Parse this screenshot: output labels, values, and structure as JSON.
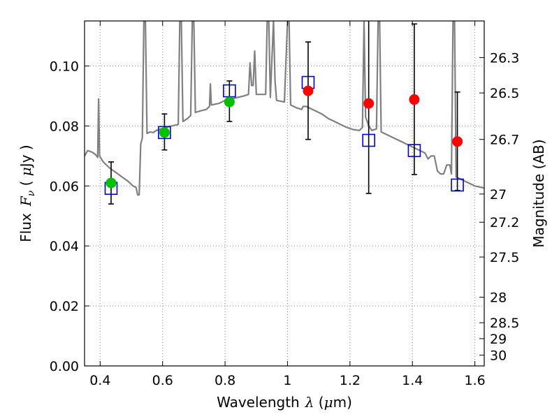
{
  "chart_data": {
    "type": "scatter",
    "xlabel": {
      "prefix": "Wavelength",
      "symbol": "λ",
      "open": " (",
      "unit_mu": "μ",
      "unit_rest": "m)"
    },
    "ylabel": {
      "prefix": "Flux",
      "symbol": "F",
      "subscript": "ν",
      "open": " ( ",
      "unit_mu": "μ",
      "unit_rest": "Jy )"
    },
    "y2label": "Magnitude (AB)",
    "xlim": [
      0.35,
      1.63
    ],
    "ylim": [
      0.0,
      0.115
    ],
    "grid": true,
    "x_ticks": [
      0.4,
      0.6,
      0.8,
      1.0,
      1.2,
      1.4,
      1.6
    ],
    "x_tick_labels": [
      "0.4",
      "0.6",
      "0.8",
      "1",
      "1.2",
      "1.4",
      "1.6"
    ],
    "y_ticks": [
      0.0,
      0.02,
      0.04,
      0.06,
      0.08,
      0.1
    ],
    "y_tick_labels": [
      "0.00",
      "0.02",
      "0.04",
      "0.06",
      "0.08",
      "0.10"
    ],
    "y2_ticks": [
      {
        "label": "26.3",
        "flux": 0.1028
      },
      {
        "label": "26.5",
        "flux": 0.091
      },
      {
        "label": "26.7",
        "flux": 0.0755
      },
      {
        "label": "27",
        "flux": 0.0573
      },
      {
        "label": "27.2",
        "flux": 0.0479
      },
      {
        "label": "27.5",
        "flux": 0.0363
      },
      {
        "label": "28",
        "flux": 0.0229
      },
      {
        "label": "28.5",
        "flux": 0.0144
      },
      {
        "label": "29",
        "flux": 0.0091
      },
      {
        "label": "30",
        "flux": 0.0036
      }
    ],
    "colors": {
      "model": "#808080",
      "detection": "#00c000",
      "upper": "#ff0000",
      "model_flux": "#0000cc",
      "errorbar": "#000000",
      "grid": "#888888"
    },
    "model_spectrum": [
      [
        0.35,
        0.07
      ],
      [
        0.36,
        0.0718
      ],
      [
        0.375,
        0.0712
      ],
      [
        0.385,
        0.0705
      ],
      [
        0.392,
        0.0695
      ],
      [
        0.395,
        0.089
      ],
      [
        0.398,
        0.07
      ],
      [
        0.41,
        0.068
      ],
      [
        0.43,
        0.066
      ],
      [
        0.45,
        0.0645
      ],
      [
        0.47,
        0.063
      ],
      [
        0.49,
        0.0615
      ],
      [
        0.505,
        0.06
      ],
      [
        0.515,
        0.0595
      ],
      [
        0.52,
        0.057
      ],
      [
        0.525,
        0.057
      ],
      [
        0.53,
        0.074
      ],
      [
        0.535,
        0.076
      ],
      [
        0.54,
        0.115
      ],
      [
        0.545,
        0.115
      ],
      [
        0.55,
        0.0775
      ],
      [
        0.56,
        0.078
      ],
      [
        0.57,
        0.0778
      ],
      [
        0.58,
        0.0785
      ],
      [
        0.595,
        0.079
      ],
      [
        0.61,
        0.0795
      ],
      [
        0.63,
        0.08
      ],
      [
        0.65,
        0.0805
      ],
      [
        0.655,
        0.115
      ],
      [
        0.66,
        0.115
      ],
      [
        0.665,
        0.0815
      ],
      [
        0.68,
        0.0825
      ],
      [
        0.69,
        0.0835
      ],
      [
        0.695,
        0.115
      ],
      [
        0.7,
        0.115
      ],
      [
        0.705,
        0.0845
      ],
      [
        0.72,
        0.085
      ],
      [
        0.74,
        0.0855
      ],
      [
        0.75,
        0.0865
      ],
      [
        0.753,
        0.094
      ],
      [
        0.756,
        0.087
      ],
      [
        0.78,
        0.0875
      ],
      [
        0.8,
        0.0885
      ],
      [
        0.82,
        0.089
      ],
      [
        0.84,
        0.0895
      ],
      [
        0.86,
        0.09
      ],
      [
        0.875,
        0.0905
      ],
      [
        0.88,
        0.101
      ],
      [
        0.885,
        0.0935
      ],
      [
        0.89,
        0.0935
      ],
      [
        0.895,
        0.105
      ],
      [
        0.9,
        0.0905
      ],
      [
        0.93,
        0.0905
      ],
      [
        0.935,
        0.115
      ],
      [
        0.94,
        0.115
      ],
      [
        0.945,
        0.0895
      ],
      [
        0.955,
        0.115
      ],
      [
        0.96,
        0.095
      ],
      [
        0.965,
        0.0885
      ],
      [
        0.99,
        0.088
      ],
      [
        1.0,
        0.115
      ],
      [
        1.005,
        0.115
      ],
      [
        1.01,
        0.087
      ],
      [
        1.03,
        0.086
      ],
      [
        1.045,
        0.0855
      ],
      [
        1.05,
        0.0865
      ],
      [
        1.06,
        0.0865
      ],
      [
        1.07,
        0.086
      ],
      [
        1.09,
        0.085
      ],
      [
        1.11,
        0.084
      ],
      [
        1.13,
        0.0825
      ],
      [
        1.15,
        0.0815
      ],
      [
        1.17,
        0.0805
      ],
      [
        1.19,
        0.0795
      ],
      [
        1.21,
        0.0788
      ],
      [
        1.23,
        0.0785
      ],
      [
        1.24,
        0.0795
      ],
      [
        1.245,
        0.115
      ],
      [
        1.25,
        0.083
      ],
      [
        1.26,
        0.08
      ],
      [
        1.27,
        0.0785
      ],
      [
        1.285,
        0.079
      ],
      [
        1.29,
        0.115
      ],
      [
        1.295,
        0.115
      ],
      [
        1.3,
        0.078
      ],
      [
        1.32,
        0.077
      ],
      [
        1.34,
        0.076
      ],
      [
        1.36,
        0.075
      ],
      [
        1.38,
        0.074
      ],
      [
        1.4,
        0.073
      ],
      [
        1.42,
        0.072
      ],
      [
        1.44,
        0.071
      ],
      [
        1.45,
        0.069
      ],
      [
        1.46,
        0.07
      ],
      [
        1.47,
        0.07
      ],
      [
        1.48,
        0.065
      ],
      [
        1.49,
        0.064
      ],
      [
        1.5,
        0.064
      ],
      [
        1.51,
        0.067
      ],
      [
        1.52,
        0.067
      ],
      [
        1.525,
        0.064
      ],
      [
        1.53,
        0.115
      ],
      [
        1.535,
        0.115
      ],
      [
        1.54,
        0.063
      ],
      [
        1.56,
        0.062
      ],
      [
        1.58,
        0.061
      ],
      [
        1.6,
        0.06
      ],
      [
        1.63,
        0.0593
      ]
    ],
    "observed": [
      {
        "x": 0.435,
        "y": 0.061,
        "err_low": 0.054,
        "err_high": 0.068,
        "kind": "detection",
        "model_flux": 0.0592
      },
      {
        "x": 0.606,
        "y": 0.0778,
        "err_low": 0.072,
        "err_high": 0.084,
        "kind": "detection",
        "model_flux": 0.0778
      },
      {
        "x": 0.814,
        "y": 0.088,
        "err_low": 0.0815,
        "err_high": 0.095,
        "kind": "detection",
        "model_flux": 0.0917
      },
      {
        "x": 1.066,
        "y": 0.0917,
        "err_low": 0.0755,
        "err_high": 0.108,
        "kind": "upper",
        "model_flux": 0.0945
      },
      {
        "x": 1.26,
        "y": 0.0875,
        "err_low": 0.0575,
        "err_high": 0.118,
        "kind": "upper",
        "model_flux": 0.0752
      },
      {
        "x": 1.406,
        "y": 0.0888,
        "err_low": 0.0638,
        "err_high": 0.114,
        "kind": "upper",
        "model_flux": 0.0718
      },
      {
        "x": 1.544,
        "y": 0.0748,
        "err_low": 0.0585,
        "err_high": 0.0913,
        "kind": "upper",
        "model_flux": 0.0603
      }
    ]
  }
}
